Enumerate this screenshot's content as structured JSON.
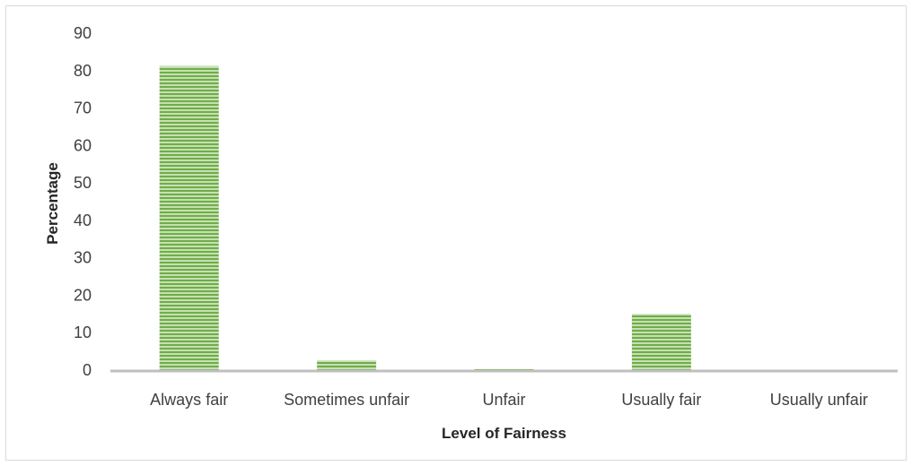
{
  "chart_data": {
    "type": "bar",
    "title": "",
    "xlabel": "Level of Fairness",
    "ylabel": "Percentage",
    "categories": [
      "Always fair",
      "Sometimes unfair",
      "Unfair",
      "Usually fair",
      "Usually unfair"
    ],
    "values": [
      81.2,
      2.6,
      0.3,
      15.0,
      0.0
    ],
    "ylim": [
      0,
      90
    ],
    "yticks": [
      "0",
      "10",
      "20",
      "30",
      "40",
      "50",
      "60",
      "70",
      "80",
      "90"
    ],
    "grid": false,
    "legend": "none",
    "bar_color": "#70ad47",
    "bar_stripe_color": "#c5e0b4",
    "axis_color": "#bfbfbf"
  }
}
